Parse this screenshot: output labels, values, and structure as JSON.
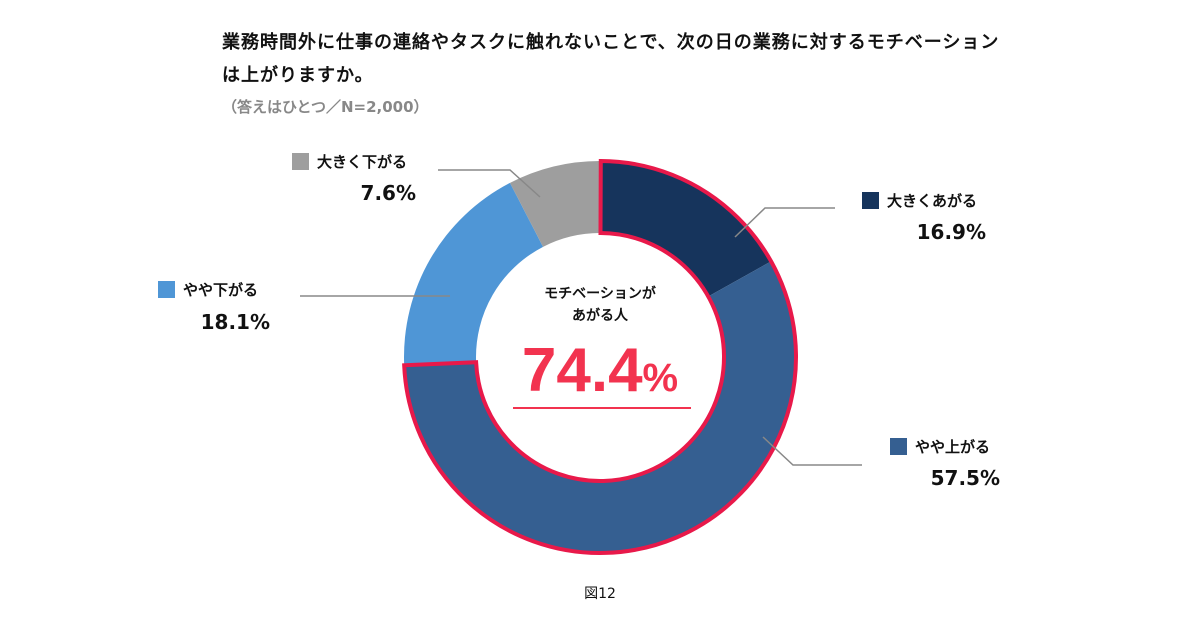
{
  "title": "業務時間外に仕事の連絡やタスクに触れないことで、次の日の業務に対するモチベーションは上がりますか。",
  "subtitle": "（答えはひとつ／N=2,000）",
  "figure_label": "図12",
  "chart_data": {
    "type": "pie",
    "donut": true,
    "title": "業務時間外に仕事の連絡やタスクに触れないことで、次の日の業務に対するモチベーションは上がりますか。",
    "categories": [
      "大きくあがる",
      "やや上がる",
      "やや下がる",
      "大きく下がる"
    ],
    "values": [
      16.9,
      57.5,
      18.1,
      7.6
    ],
    "value_labels": [
      "16.9%",
      "57.5%",
      "18.1%",
      "7.6%"
    ],
    "colors": [
      "#16345c",
      "#355f91",
      "#4f96d6",
      "#9e9e9e"
    ],
    "highlight_color": "#e8194a",
    "center_label": [
      "モチベーションが",
      "あがる人"
    ],
    "center_value": "74.4",
    "center_unit": "%"
  }
}
